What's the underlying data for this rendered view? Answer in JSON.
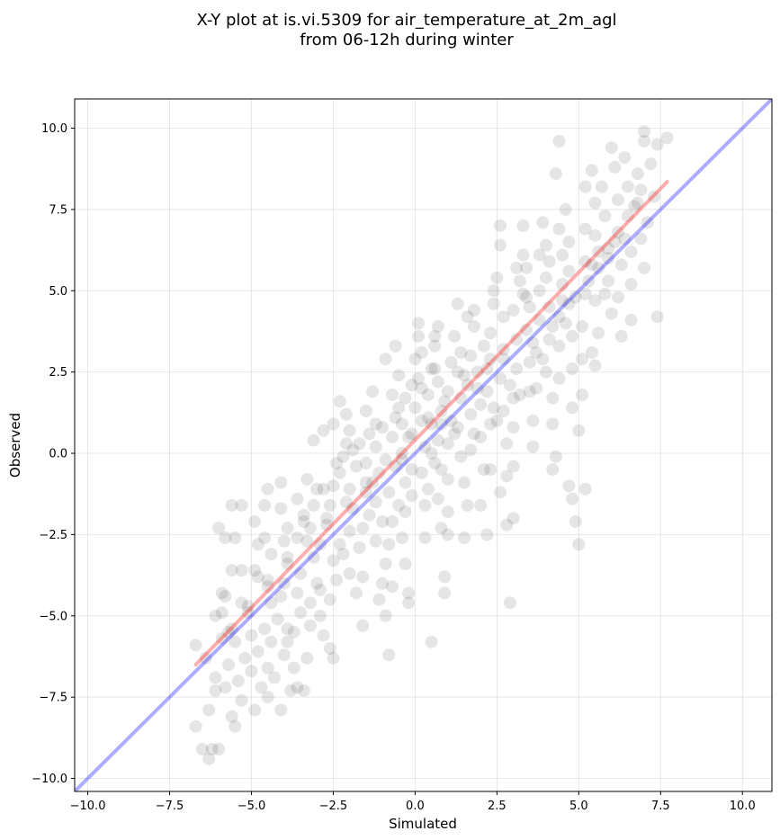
{
  "chart_data": {
    "type": "scatter",
    "title_lines": [
      "X-Y plot at is.vi.5309 for air_temperature_at_2m_agl",
      "from 06-12h during winter"
    ],
    "xlabel": "Simulated",
    "ylabel": "Observed",
    "xlim": [
      -10.4,
      10.9
    ],
    "ylim": [
      -10.4,
      10.9
    ],
    "x_ticks": [
      -10.0,
      -7.5,
      -5.0,
      -2.5,
      0.0,
      2.5,
      5.0,
      7.5,
      10.0
    ],
    "y_ticks": [
      -10.0,
      -7.5,
      -5.0,
      -2.5,
      0.0,
      2.5,
      5.0,
      7.5,
      10.0
    ],
    "x_tick_labels": [
      "−10.0",
      "−7.5",
      "−5.0",
      "−2.5",
      "0.0",
      "2.5",
      "5.0",
      "7.5",
      "10.0"
    ],
    "y_tick_labels": [
      "−10.0",
      "−7.5",
      "−5.0",
      "−2.5",
      "0.0",
      "2.5",
      "5.0",
      "7.5",
      "10.0"
    ],
    "grid": true,
    "point_color": "#000000",
    "point_opacity": 0.1,
    "lines": [
      {
        "kind": "identity",
        "color": "#0000ff",
        "opacity": 0.32,
        "x": [
          -10.4,
          10.9
        ],
        "y": [
          -10.4,
          10.9
        ]
      },
      {
        "kind": "regression",
        "color": "#ff0000",
        "opacity": 0.32,
        "x": [
          -6.7,
          7.7
        ],
        "y": [
          -6.5,
          8.35
        ]
      }
    ],
    "points": [
      [
        -6.7,
        -8.4
      ],
      [
        -6.5,
        -9.1
      ],
      [
        -6.3,
        -9.4
      ],
      [
        -6.2,
        -9.1
      ],
      [
        -6.0,
        -9.1
      ],
      [
        -6.3,
        -7.9
      ],
      [
        -6.1,
        -7.3
      ],
      [
        -5.8,
        -7.2
      ],
      [
        -5.6,
        -8.1
      ],
      [
        -5.5,
        -8.4
      ],
      [
        -6.7,
        -5.9
      ],
      [
        -6.1,
        -5.0
      ],
      [
        -5.9,
        -4.9
      ],
      [
        -5.9,
        -4.3
      ],
      [
        -6.0,
        -2.3
      ],
      [
        -5.8,
        -2.6
      ],
      [
        -5.5,
        -2.6
      ],
      [
        -5.6,
        -1.6
      ],
      [
        -5.3,
        -1.6
      ],
      [
        -5.6,
        -3.6
      ],
      [
        -5.3,
        -3.6
      ],
      [
        -5.8,
        -4.4
      ],
      [
        -5.6,
        -5.4
      ],
      [
        -5.5,
        -5.8
      ],
      [
        -5.2,
        -6.3
      ],
      [
        -5.4,
        -7.0
      ],
      [
        -5.3,
        -7.6
      ],
      [
        -5.0,
        -6.7
      ],
      [
        -5.0,
        -5.6
      ],
      [
        -5.1,
        -4.7
      ],
      [
        -4.9,
        -3.6
      ],
      [
        -4.8,
        -2.8
      ],
      [
        -4.9,
        -2.1
      ],
      [
        -4.6,
        -1.6
      ],
      [
        -4.5,
        -1.1
      ],
      [
        -4.6,
        -2.6
      ],
      [
        -4.4,
        -3.1
      ],
      [
        -4.5,
        -3.9
      ],
      [
        -4.4,
        -4.6
      ],
      [
        -4.6,
        -5.4
      ],
      [
        -4.4,
        -5.8
      ],
      [
        -4.5,
        -6.6
      ],
      [
        -4.3,
        -6.9
      ],
      [
        -4.7,
        -7.2
      ],
      [
        -4.5,
        -7.5
      ],
      [
        -4.1,
        -7.9
      ],
      [
        -4.9,
        -7.9
      ],
      [
        -4.1,
        -1.7
      ],
      [
        -4.1,
        -0.9
      ],
      [
        -3.9,
        -2.3
      ],
      [
        -3.9,
        -3.2
      ],
      [
        -4.0,
        -4.0
      ],
      [
        -4.1,
        -4.4
      ],
      [
        -3.9,
        -5.4
      ],
      [
        -4.0,
        -6.2
      ],
      [
        -3.7,
        -6.6
      ],
      [
        -3.8,
        -7.3
      ],
      [
        -3.6,
        -7.2
      ],
      [
        -3.4,
        -7.3
      ],
      [
        -3.3,
        -6.3
      ],
      [
        -3.5,
        -4.9
      ],
      [
        -3.6,
        -4.3
      ],
      [
        -3.5,
        -3.7
      ],
      [
        -3.6,
        -2.6
      ],
      [
        -3.4,
        -2.1
      ],
      [
        -3.6,
        -1.4
      ],
      [
        -3.3,
        -0.8
      ],
      [
        -3.1,
        0.4
      ],
      [
        -2.8,
        0.7
      ],
      [
        -3.0,
        -1.1
      ],
      [
        -3.1,
        -1.6
      ],
      [
        -3.2,
        -2.3
      ],
      [
        -2.9,
        -2.8
      ],
      [
        -3.1,
        -3.2
      ],
      [
        -2.9,
        -4.2
      ],
      [
        -2.9,
        -5.0
      ],
      [
        -3.2,
        -5.3
      ],
      [
        -2.8,
        -5.6
      ],
      [
        -2.6,
        -6.0
      ],
      [
        -2.5,
        -6.3
      ],
      [
        -2.6,
        -4.5
      ],
      [
        -2.4,
        -3.9
      ],
      [
        -2.5,
        -3.3
      ],
      [
        -2.7,
        -2.2
      ],
      [
        -2.6,
        -1.6
      ],
      [
        -2.5,
        -1.0
      ],
      [
        -2.4,
        -0.3
      ],
      [
        -2.3,
        -0.6
      ],
      [
        -2.1,
        0.3
      ],
      [
        -2.5,
        0.9
      ],
      [
        -2.3,
        1.6
      ],
      [
        -2.1,
        1.2
      ],
      [
        -2.0,
        0.7
      ],
      [
        -1.9,
        0.1
      ],
      [
        -1.8,
        -0.4
      ],
      [
        -2.0,
        -1.1
      ],
      [
        -1.9,
        -1.7
      ],
      [
        -2.0,
        -2.4
      ],
      [
        -1.7,
        -2.9
      ],
      [
        -2.0,
        -3.7
      ],
      [
        -1.8,
        -4.3
      ],
      [
        -1.6,
        -5.3
      ],
      [
        -1.6,
        -3.8
      ],
      [
        -1.6,
        -2.3
      ],
      [
        -1.5,
        -1.2
      ],
      [
        -1.5,
        -0.3
      ],
      [
        -1.4,
        0.6
      ],
      [
        -1.5,
        1.3
      ],
      [
        -1.3,
        1.9
      ],
      [
        -1.2,
        0.9
      ],
      [
        -1.2,
        0.2
      ],
      [
        -1.1,
        -0.6
      ],
      [
        -1.2,
        -1.5
      ],
      [
        -1.0,
        -2.1
      ],
      [
        -1.2,
        -2.7
      ],
      [
        -0.9,
        -3.4
      ],
      [
        -1.0,
        -4.0
      ],
      [
        -1.1,
        -4.5
      ],
      [
        -0.9,
        -5.0
      ],
      [
        -0.8,
        -6.2
      ],
      [
        -0.7,
        -4.1
      ],
      [
        -0.8,
        -2.8
      ],
      [
        -0.7,
        -2.1
      ],
      [
        -0.8,
        -1.2
      ],
      [
        -0.6,
        -0.4
      ],
      [
        -0.7,
        0.5
      ],
      [
        -0.6,
        1.1
      ],
      [
        -0.7,
        1.8
      ],
      [
        -0.5,
        2.4
      ],
      [
        -0.9,
        2.9
      ],
      [
        -0.6,
        3.3
      ],
      [
        -0.5,
        1.4
      ],
      [
        -0.4,
        0.9
      ],
      [
        -0.4,
        0.0
      ],
      [
        -0.3,
        -0.9
      ],
      [
        -0.3,
        -1.8
      ],
      [
        -0.4,
        -2.6
      ],
      [
        -0.3,
        -3.4
      ],
      [
        -0.2,
        -4.3
      ],
      [
        -0.2,
        -4.6
      ],
      [
        -0.1,
        -1.3
      ],
      [
        -0.1,
        -0.5
      ],
      [
        -0.1,
        0.6
      ],
      [
        0.0,
        1.4
      ],
      [
        -0.1,
        2.1
      ],
      [
        0.0,
        2.9
      ],
      [
        0.1,
        3.6
      ],
      [
        0.1,
        4.0
      ],
      [
        0.2,
        3.1
      ],
      [
        0.2,
        2.0
      ],
      [
        0.2,
        1.0
      ],
      [
        0.3,
        0.2
      ],
      [
        0.2,
        -0.6
      ],
      [
        0.3,
        -1.6
      ],
      [
        0.3,
        -2.6
      ],
      [
        0.5,
        -5.8
      ],
      [
        0.4,
        -1.1
      ],
      [
        0.5,
        0.0
      ],
      [
        0.5,
        0.9
      ],
      [
        0.4,
        1.8
      ],
      [
        0.5,
        2.6
      ],
      [
        0.6,
        3.3
      ],
      [
        0.7,
        3.9
      ],
      [
        0.7,
        2.2
      ],
      [
        0.8,
        1.3
      ],
      [
        0.7,
        0.4
      ],
      [
        0.8,
        -0.5
      ],
      [
        0.7,
        -1.4
      ],
      [
        0.8,
        -2.3
      ],
      [
        1.0,
        -2.5
      ],
      [
        0.9,
        -3.8
      ],
      [
        0.9,
        -4.3
      ],
      [
        1.0,
        -1.8
      ],
      [
        1.0,
        -0.8
      ],
      [
        1.0,
        0.3
      ],
      [
        1.1,
        1.0
      ],
      [
        1.0,
        1.9
      ],
      [
        1.1,
        2.8
      ],
      [
        1.2,
        3.6
      ],
      [
        1.3,
        4.6
      ],
      [
        1.3,
        2.5
      ],
      [
        1.4,
        1.7
      ],
      [
        1.3,
        0.8
      ],
      [
        1.4,
        -0.1
      ],
      [
        1.5,
        -0.9
      ],
      [
        1.6,
        -1.6
      ],
      [
        1.5,
        -2.6
      ],
      [
        1.7,
        0.1
      ],
      [
        1.7,
        1.2
      ],
      [
        1.6,
        2.1
      ],
      [
        1.7,
        3.0
      ],
      [
        1.8,
        3.9
      ],
      [
        1.8,
        4.4
      ],
      [
        1.9,
        2.5
      ],
      [
        2.0,
        1.5
      ],
      [
        2.0,
        0.5
      ],
      [
        2.1,
        -0.5
      ],
      [
        2.0,
        -1.6
      ],
      [
        2.2,
        -2.5
      ],
      [
        2.3,
        -0.5
      ],
      [
        2.3,
        0.9
      ],
      [
        2.2,
        1.9
      ],
      [
        2.3,
        2.9
      ],
      [
        2.3,
        3.7
      ],
      [
        2.4,
        4.6
      ],
      [
        2.5,
        5.4
      ],
      [
        2.6,
        6.4
      ],
      [
        2.6,
        7.0
      ],
      [
        2.7,
        4.2
      ],
      [
        2.7,
        3.2
      ],
      [
        2.6,
        2.3
      ],
      [
        2.7,
        1.3
      ],
      [
        2.8,
        0.3
      ],
      [
        2.8,
        -0.7
      ],
      [
        2.6,
        -1.2
      ],
      [
        2.8,
        -2.2
      ],
      [
        3.0,
        -0.4
      ],
      [
        3.0,
        0.8
      ],
      [
        3.0,
        1.7
      ],
      [
        3.1,
        2.6
      ],
      [
        3.1,
        3.5
      ],
      [
        3.0,
        4.4
      ],
      [
        3.2,
        5.3
      ],
      [
        3.3,
        6.1
      ],
      [
        3.3,
        7.0
      ],
      [
        3.4,
        5.7
      ],
      [
        3.4,
        4.8
      ],
      [
        3.4,
        3.8
      ],
      [
        3.5,
        2.8
      ],
      [
        3.5,
        1.9
      ],
      [
        3.6,
        1.0
      ],
      [
        3.6,
        0.2
      ],
      [
        3.0,
        -2.0
      ],
      [
        2.9,
        -4.6
      ],
      [
        3.7,
        2.0
      ],
      [
        3.7,
        3.1
      ],
      [
        3.8,
        4.1
      ],
      [
        3.8,
        5.0
      ],
      [
        3.8,
        6.1
      ],
      [
        3.9,
        7.1
      ],
      [
        4.0,
        6.4
      ],
      [
        4.0,
        5.4
      ],
      [
        4.1,
        4.5
      ],
      [
        4.1,
        3.5
      ],
      [
        4.0,
        2.5
      ],
      [
        4.2,
        1.7
      ],
      [
        4.2,
        0.9
      ],
      [
        4.3,
        -0.1
      ],
      [
        4.2,
        -0.5
      ],
      [
        4.4,
        2.3
      ],
      [
        4.4,
        3.3
      ],
      [
        4.4,
        4.2
      ],
      [
        4.5,
        5.2
      ],
      [
        4.5,
        6.1
      ],
      [
        4.4,
        6.9
      ],
      [
        4.3,
        8.6
      ],
      [
        4.4,
        9.6
      ],
      [
        4.6,
        7.5
      ],
      [
        4.7,
        6.5
      ],
      [
        4.7,
        5.6
      ],
      [
        4.7,
        4.6
      ],
      [
        4.8,
        3.6
      ],
      [
        4.8,
        2.6
      ],
      [
        4.8,
        1.4
      ],
      [
        4.7,
        -1.0
      ],
      [
        4.8,
        -1.4
      ],
      [
        4.9,
        -2.1
      ],
      [
        5.0,
        -2.8
      ],
      [
        5.2,
        -1.1
      ],
      [
        5.0,
        0.7
      ],
      [
        5.1,
        1.8
      ],
      [
        5.1,
        2.9
      ],
      [
        5.1,
        3.9
      ],
      [
        5.2,
        4.9
      ],
      [
        5.2,
        5.9
      ],
      [
        5.2,
        6.9
      ],
      [
        5.2,
        8.2
      ],
      [
        5.4,
        8.7
      ],
      [
        5.5,
        7.7
      ],
      [
        5.5,
        6.7
      ],
      [
        5.6,
        5.7
      ],
      [
        5.5,
        4.7
      ],
      [
        5.6,
        3.7
      ],
      [
        5.5,
        2.7
      ],
      [
        5.4,
        3.1
      ],
      [
        5.7,
        8.2
      ],
      [
        5.8,
        7.3
      ],
      [
        5.9,
        6.3
      ],
      [
        5.9,
        5.3
      ],
      [
        6.0,
        4.3
      ],
      [
        6.0,
        9.4
      ],
      [
        6.1,
        8.8
      ],
      [
        6.2,
        7.8
      ],
      [
        6.2,
        6.8
      ],
      [
        6.3,
        5.8
      ],
      [
        6.2,
        4.8
      ],
      [
        6.3,
        3.6
      ],
      [
        6.4,
        9.1
      ],
      [
        6.5,
        8.2
      ],
      [
        6.5,
        7.3
      ],
      [
        6.6,
        6.2
      ],
      [
        6.6,
        5.2
      ],
      [
        6.6,
        4.1
      ],
      [
        6.8,
        8.6
      ],
      [
        6.8,
        7.7
      ],
      [
        6.9,
        6.6
      ],
      [
        7.0,
        5.7
      ],
      [
        7.0,
        9.9
      ],
      [
        7.0,
        9.6
      ],
      [
        7.2,
        8.9
      ],
      [
        7.3,
        7.9
      ],
      [
        7.4,
        4.2
      ],
      [
        7.4,
        9.5
      ],
      [
        7.7,
        9.7
      ],
      [
        6.9,
        8.1
      ],
      [
        7.1,
        7.1
      ],
      [
        5.8,
        4.9
      ],
      [
        4.1,
        5.9
      ],
      [
        3.3,
        4.9
      ],
      [
        2.1,
        3.3
      ],
      [
        1.5,
        2.4
      ],
      [
        0.9,
        1.6
      ],
      [
        0.4,
        1.1
      ],
      [
        -0.2,
        0.5
      ],
      [
        -0.9,
        -0.2
      ],
      [
        -1.5,
        -0.9
      ],
      [
        -2.1,
        -1.5
      ],
      [
        -2.7,
        -2.0
      ],
      [
        -3.3,
        -2.7
      ],
      [
        -3.9,
        -3.4
      ],
      [
        -4.5,
        -4.1
      ],
      [
        -5.1,
        -4.9
      ],
      [
        -5.7,
        -5.5
      ],
      [
        -4.2,
        -5.1
      ],
      [
        -3.7,
        -5.5
      ],
      [
        -3.2,
        -4.6
      ],
      [
        -2.2,
        -3.1
      ],
      [
        -1.4,
        -1.9
      ],
      [
        -0.5,
        -1.6
      ],
      [
        0.6,
        -0.3
      ],
      [
        1.2,
        0.6
      ],
      [
        2.5,
        1.0
      ],
      [
        3.2,
        1.8
      ],
      [
        3.9,
        2.9
      ],
      [
        4.6,
        4.0
      ],
      [
        5.3,
        5.3
      ],
      [
        5.9,
        6.0
      ],
      [
        6.4,
        6.6
      ],
      [
        2.2,
        2.6
      ],
      [
        1.4,
        3.1
      ],
      [
        0.6,
        2.6
      ],
      [
        0.1,
        2.3
      ],
      [
        -0.3,
        1.7
      ],
      [
        1.8,
        0.6
      ],
      [
        2.4,
        1.4
      ],
      [
        2.9,
        2.1
      ],
      [
        3.5,
        4.5
      ],
      [
        4.2,
        3.9
      ],
      [
        4.9,
        4.8
      ],
      [
        5.6,
        6.2
      ],
      [
        -1.0,
        0.8
      ],
      [
        -1.7,
        0.3
      ],
      [
        -2.2,
        -0.1
      ],
      [
        -2.8,
        -1.1
      ],
      [
        -3.4,
        -1.9
      ],
      [
        -4.0,
        -2.7
      ],
      [
        -4.8,
        -3.8
      ],
      [
        -5.3,
        -4.6
      ],
      [
        -5.9,
        -5.7
      ],
      [
        -6.4,
        -6.3
      ],
      [
        -6.1,
        -6.9
      ],
      [
        -5.7,
        -6.5
      ],
      [
        -4.8,
        -6.1
      ],
      [
        -3.9,
        -5.8
      ],
      [
        -3.0,
        -4.0
      ],
      [
        -2.3,
        -2.8
      ],
      [
        -1.3,
        -0.9
      ],
      [
        -0.4,
        -0.2
      ],
      [
        0.8,
        0.9
      ],
      [
        1.9,
        2.0
      ],
      [
        2.7,
        2.9
      ],
      [
        3.6,
        3.4
      ],
      [
        4.5,
        4.7
      ],
      [
        5.4,
        5.8
      ],
      [
        6.1,
        6.5
      ],
      [
        6.7,
        7.6
      ],
      [
        3.1,
        5.7
      ],
      [
        2.4,
        5.0
      ],
      [
        1.6,
        4.2
      ],
      [
        0.6,
        3.6
      ]
    ]
  }
}
